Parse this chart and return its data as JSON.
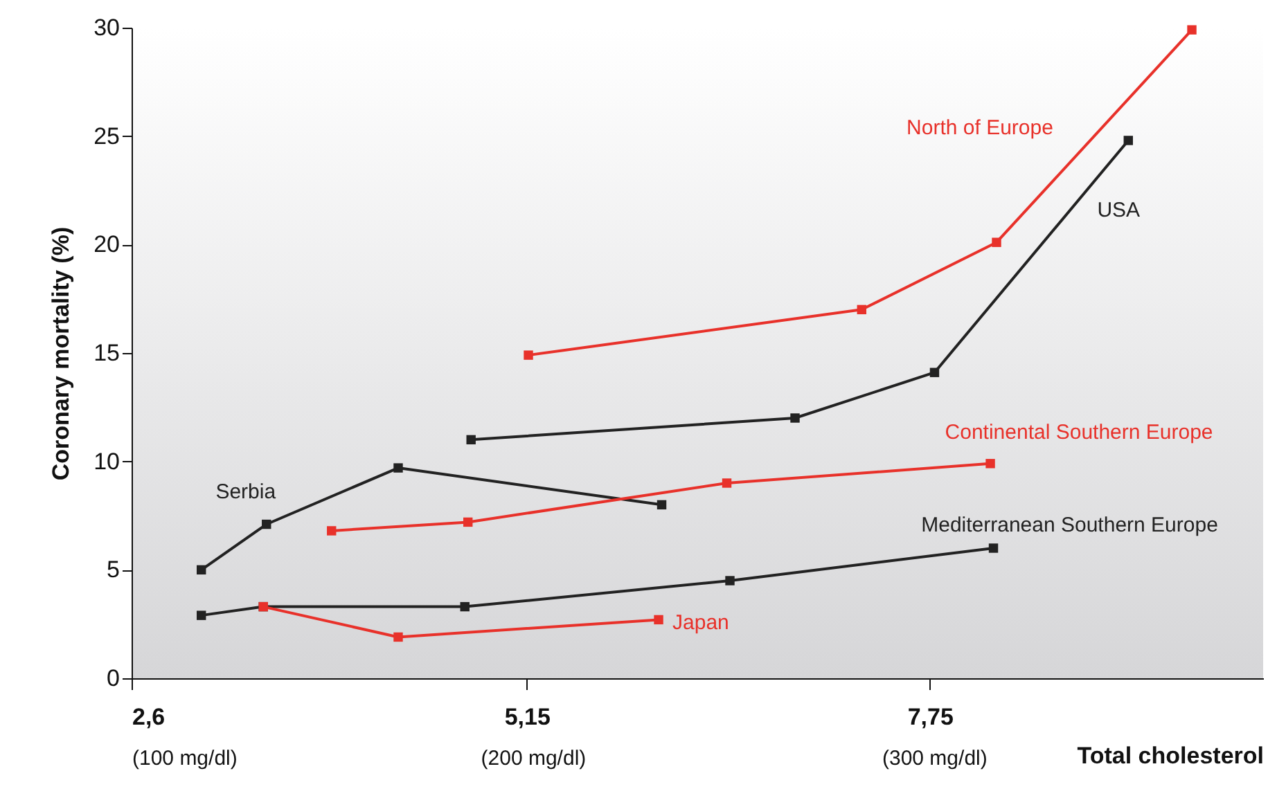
{
  "chart_data": {
    "type": "line",
    "xlabel": "Total cholesterol",
    "ylabel": "Coronary mortality (%)",
    "xlim": [
      2.6,
      9.9
    ],
    "xticks": [
      {
        "value": 2.6,
        "label": "2,6"
      },
      {
        "value": 5.15,
        "label": "5,15"
      },
      {
        "value": 7.75,
        "label": "7,75"
      }
    ],
    "x2lim": [
      100,
      382
    ],
    "x2ticks": [
      {
        "value": 100,
        "label": "(100 mg/dl)"
      },
      {
        "value": 200,
        "label": "(200 mg/dl)"
      },
      {
        "value": 300,
        "label": "(300 mg/dl)"
      }
    ],
    "ylim": [
      0,
      30
    ],
    "yticks": [
      0,
      5,
      10,
      15,
      20,
      25,
      30
    ],
    "grid": false,
    "legend": false,
    "marker": "square",
    "line_style": "solid",
    "series": [
      {
        "name": "Serbia",
        "color": "#222222",
        "x": [
          3.05,
          3.47,
          4.32,
          6.02
        ],
        "values": [
          5.0,
          7.1,
          9.7,
          8.0
        ]
      },
      {
        "name": "Mediterranean Southern Europe",
        "color": "#222222",
        "x": [
          3.05,
          3.45,
          4.75,
          6.46,
          8.16
        ],
        "values": [
          2.9,
          3.3,
          3.3,
          4.5,
          6.0
        ]
      },
      {
        "name": "Japan",
        "color": "#e8312a",
        "x": [
          3.45,
          4.32,
          6.0
        ],
        "values": [
          3.3,
          1.9,
          2.7
        ]
      },
      {
        "name": "Continental Southern Europe",
        "color": "#e8312a",
        "x": [
          3.89,
          4.77,
          6.44,
          8.14
        ],
        "values": [
          6.8,
          7.2,
          9.0,
          9.9
        ]
      },
      {
        "name": "USA",
        "color": "#222222",
        "x": [
          4.79,
          6.88,
          7.78,
          9.03
        ],
        "values": [
          11.0,
          12.0,
          14.1,
          24.8
        ]
      },
      {
        "name": "North of Europe",
        "color": "#e8312a",
        "x": [
          5.16,
          7.31,
          8.18,
          9.44
        ],
        "values": [
          14.9,
          17.0,
          20.1,
          29.9
        ]
      }
    ]
  }
}
